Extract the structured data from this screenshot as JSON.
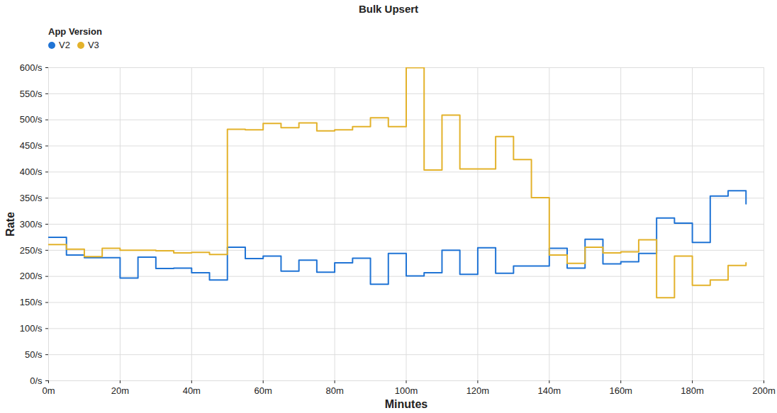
{
  "chart_data": {
    "type": "line",
    "title": "Bulk Upsert",
    "legend_title": "App Version",
    "x_label": "Minutes",
    "y_label": "Rate",
    "line_style": "step",
    "grid": true,
    "legend": "top-left",
    "x": [
      0,
      5,
      10,
      15,
      20,
      25,
      30,
      35,
      40,
      45,
      50,
      55,
      60,
      65,
      70,
      75,
      80,
      85,
      90,
      95,
      100,
      105,
      110,
      115,
      120,
      125,
      130,
      135,
      140,
      145,
      150,
      155,
      160,
      165,
      170,
      175,
      180,
      185,
      190,
      195
    ],
    "series": [
      {
        "name": "V2",
        "color": "#2074d5",
        "values": [
          275,
          241,
          236,
          236,
          197,
          237,
          215,
          216,
          207,
          193,
          256,
          234,
          239,
          210,
          231,
          208,
          226,
          235,
          185,
          244,
          201,
          207,
          250,
          204,
          255,
          206,
          220,
          220,
          254,
          216,
          271,
          224,
          228,
          244,
          312,
          302,
          265,
          354,
          364,
          339
        ]
      },
      {
        "name": "V3",
        "color": "#e3b22b",
        "values": [
          261,
          252,
          238,
          254,
          250,
          250,
          249,
          245,
          246,
          242,
          482,
          481,
          493,
          485,
          494,
          479,
          481,
          487,
          504,
          487,
          600,
          404,
          509,
          406,
          406,
          468,
          424,
          351,
          241,
          225,
          256,
          245,
          247,
          270,
          159,
          239,
          183,
          193,
          221,
          226
        ]
      }
    ],
    "xlim": [
      0,
      200
    ],
    "xticks": [
      {
        "value": 0,
        "label": "0m"
      },
      {
        "value": 20,
        "label": "20m"
      },
      {
        "value": 40,
        "label": "40m"
      },
      {
        "value": 60,
        "label": "60m"
      },
      {
        "value": 80,
        "label": "80m"
      },
      {
        "value": 100,
        "label": "100m"
      },
      {
        "value": 120,
        "label": "120m"
      },
      {
        "value": 140,
        "label": "140m"
      },
      {
        "value": 160,
        "label": "160m"
      },
      {
        "value": 180,
        "label": "180m"
      },
      {
        "value": 200,
        "label": "200m"
      }
    ],
    "ylim": [
      0,
      600
    ],
    "yticks": [
      {
        "value": 0,
        "label": "0/s"
      },
      {
        "value": 50,
        "label": "50/s"
      },
      {
        "value": 100,
        "label": "100/s"
      },
      {
        "value": 150,
        "label": "150/s"
      },
      {
        "value": 200,
        "label": "200/s"
      },
      {
        "value": 250,
        "label": "250/s"
      },
      {
        "value": 300,
        "label": "300/s"
      },
      {
        "value": 350,
        "label": "350/s"
      },
      {
        "value": 400,
        "label": "400/s"
      },
      {
        "value": 450,
        "label": "450/s"
      },
      {
        "value": 500,
        "label": "500/s"
      },
      {
        "value": 550,
        "label": "550/s"
      },
      {
        "value": 600,
        "label": "600/s"
      }
    ]
  }
}
